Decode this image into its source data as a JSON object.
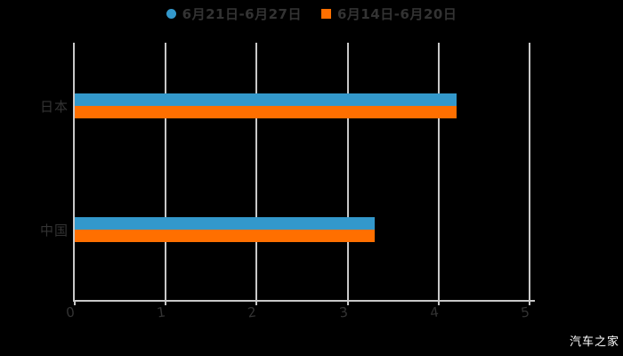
{
  "colors": {
    "background": "#000000",
    "bar_blue": "#3398cb",
    "bar_orange": "#ff6f00",
    "axis": "#c8c8c8",
    "label_text": "#333333",
    "watermark_text": "#ffffff"
  },
  "legend": {
    "items": [
      {
        "label": "6月21日-6月27日",
        "marker": "circle",
        "color": "#3398cb"
      },
      {
        "label": "6月14日-6月20日",
        "marker": "square",
        "color": "#ff6f00"
      }
    ]
  },
  "watermark": "汽车之家",
  "chart_data": {
    "type": "bar",
    "orientation": "horizontal",
    "title": "",
    "xlabel": "",
    "ylabel": "",
    "categories": [
      "日本",
      "中国"
    ],
    "series": [
      {
        "name": "6月21日-6月27日",
        "color": "#3398cb",
        "values": [
          4.2,
          3.3
        ]
      },
      {
        "name": "6月14日-6月20日",
        "color": "#ff6f00",
        "values": [
          4.2,
          3.3
        ]
      }
    ],
    "xlim": [
      0,
      5
    ],
    "x_ticks": [
      "0",
      "1",
      "2",
      "3",
      "4",
      "5"
    ],
    "grid": true,
    "legend_position": "top"
  }
}
